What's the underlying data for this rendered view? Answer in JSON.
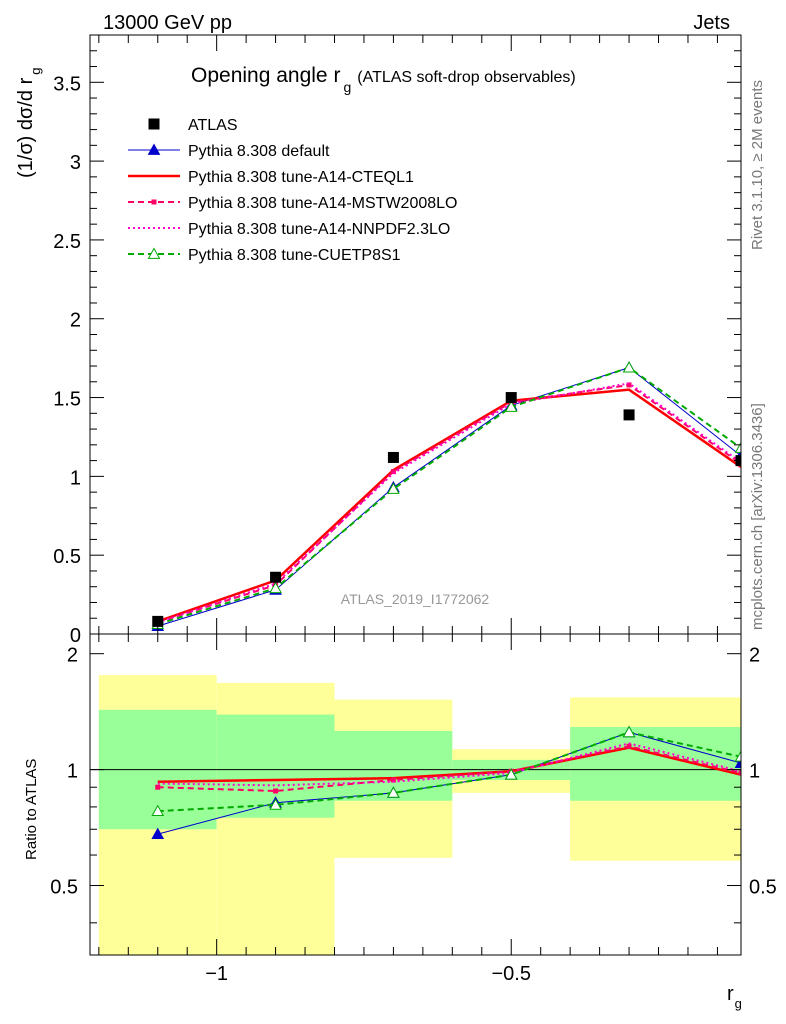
{
  "header": {
    "left": "13000 GeV pp",
    "right": "Jets"
  },
  "side": {
    "rivet": "Rivet 3.1.10, ≥ 2M events",
    "mcplots": "mcplots.cern.ch [arXiv:1306.3436]"
  },
  "watermark": "ATLAS_2019_I1772062",
  "chart_data": [
    {
      "type": "line",
      "title": "Opening angle r",
      "title_sub": "g",
      "title_tail": "(ATLAS soft-drop observables)",
      "ylabel": "(1/σ) dσ/d r",
      "ylabel_sub": "g",
      "xlabel": "r",
      "xlabel_sub": "g",
      "xlim": [
        -1.215,
        -0.11
      ],
      "ylim": [
        0,
        3.8
      ],
      "yticks": [
        "0",
        "0.5",
        "1",
        "1.5",
        "2",
        "2.5",
        "3",
        "3.5"
      ],
      "legend_position": "top-left",
      "x": [
        -1.1,
        -0.9,
        -0.7,
        -0.5,
        -0.3,
        -0.11
      ],
      "data": {
        "name": "ATLAS",
        "values": [
          0.08,
          0.36,
          1.12,
          1.5,
          1.39,
          1.1
        ]
      },
      "series": [
        {
          "name": "Pythia 8.308 default",
          "color": "#0000cc",
          "style": "solid",
          "marker": "filled-triangle",
          "values": [
            0.05,
            0.28,
            0.93,
            1.45,
            1.69,
            1.13
          ]
        },
        {
          "name": "Pythia 8.308 tune-A14-CTEQL1",
          "color": "#ff0000",
          "style": "thick-solid",
          "marker": "none",
          "values": [
            0.08,
            0.34,
            1.04,
            1.48,
            1.55,
            1.06
          ]
        },
        {
          "name": "Pythia 8.308 tune-A14-MSTW2008LO",
          "color": "#ff0066",
          "style": "dashed",
          "marker": "small-square",
          "values": [
            0.075,
            0.31,
            1.03,
            1.47,
            1.58,
            1.08
          ]
        },
        {
          "name": "Pythia 8.308 tune-A14-NNPDF2.3LO",
          "color": "#ff00cc",
          "style": "dotted",
          "marker": "none",
          "values": [
            0.074,
            0.32,
            1.02,
            1.46,
            1.59,
            1.09
          ]
        },
        {
          "name": "Pythia 8.308 tune-CUETP8S1",
          "color": "#00aa00",
          "style": "dashed",
          "marker": "open-triangle",
          "values": [
            0.063,
            0.29,
            0.92,
            1.44,
            1.69,
            1.18
          ]
        }
      ]
    },
    {
      "type": "line",
      "ylabel": "Ratio to ATLAS",
      "xlabel": "r",
      "xlabel_sub": "g",
      "xlim": [
        -1.215,
        -0.11
      ],
      "ylim": [
        0.33,
        2.25
      ],
      "yticks": [
        "0.5",
        "1",
        "2"
      ],
      "xticks": [
        "−1",
        "−0.5"
      ],
      "reference_line": 1,
      "bins": [
        {
          "lo": -1.2,
          "hi": -1.0,
          "inner": [
            0.7,
            1.43
          ],
          "outer": [
            0.33,
            1.76
          ]
        },
        {
          "lo": -1.0,
          "hi": -0.8,
          "inner": [
            0.75,
            1.39
          ],
          "outer": [
            0.33,
            1.68
          ]
        },
        {
          "lo": -0.8,
          "hi": -0.6,
          "inner": [
            0.83,
            1.26
          ],
          "outer": [
            0.59,
            1.52
          ]
        },
        {
          "lo": -0.6,
          "hi": -0.4,
          "inner": [
            0.94,
            1.06
          ],
          "outer": [
            0.87,
            1.13
          ]
        },
        {
          "lo": -0.4,
          "hi": -0.2,
          "inner": [
            0.83,
            1.29
          ],
          "outer": [
            0.58,
            1.54
          ]
        },
        {
          "lo": -0.2,
          "hi": -0.1,
          "inner": [
            0.83,
            1.29
          ],
          "outer": [
            0.58,
            1.54
          ]
        }
      ],
      "x": [
        -1.1,
        -0.9,
        -0.7,
        -0.5,
        -0.3,
        -0.11
      ],
      "series": [
        {
          "name": "Pythia 8.308 default",
          "color": "#0000cc",
          "values": [
            0.68,
            0.82,
            0.87,
            0.97,
            1.25,
            1.04
          ]
        },
        {
          "name": "Pythia 8.308 tune-A14-CTEQL1",
          "color": "#ff0000",
          "values": [
            0.93,
            0.94,
            0.95,
            0.99,
            1.14,
            0.97
          ]
        },
        {
          "name": "Pythia 8.308 tune-A14-MSTW2008LO",
          "color": "#ff0066",
          "values": [
            0.9,
            0.88,
            0.94,
            0.99,
            1.15,
            0.98
          ]
        },
        {
          "name": "Pythia 8.308 tune-A14-NNPDF2.3LO",
          "color": "#ff00cc",
          "values": [
            0.92,
            0.91,
            0.93,
            0.98,
            1.17,
            0.99
          ]
        },
        {
          "name": "Pythia 8.308 tune-CUETP8S1",
          "color": "#00aa00",
          "values": [
            0.78,
            0.81,
            0.87,
            0.97,
            1.25,
            1.08
          ]
        }
      ]
    }
  ]
}
